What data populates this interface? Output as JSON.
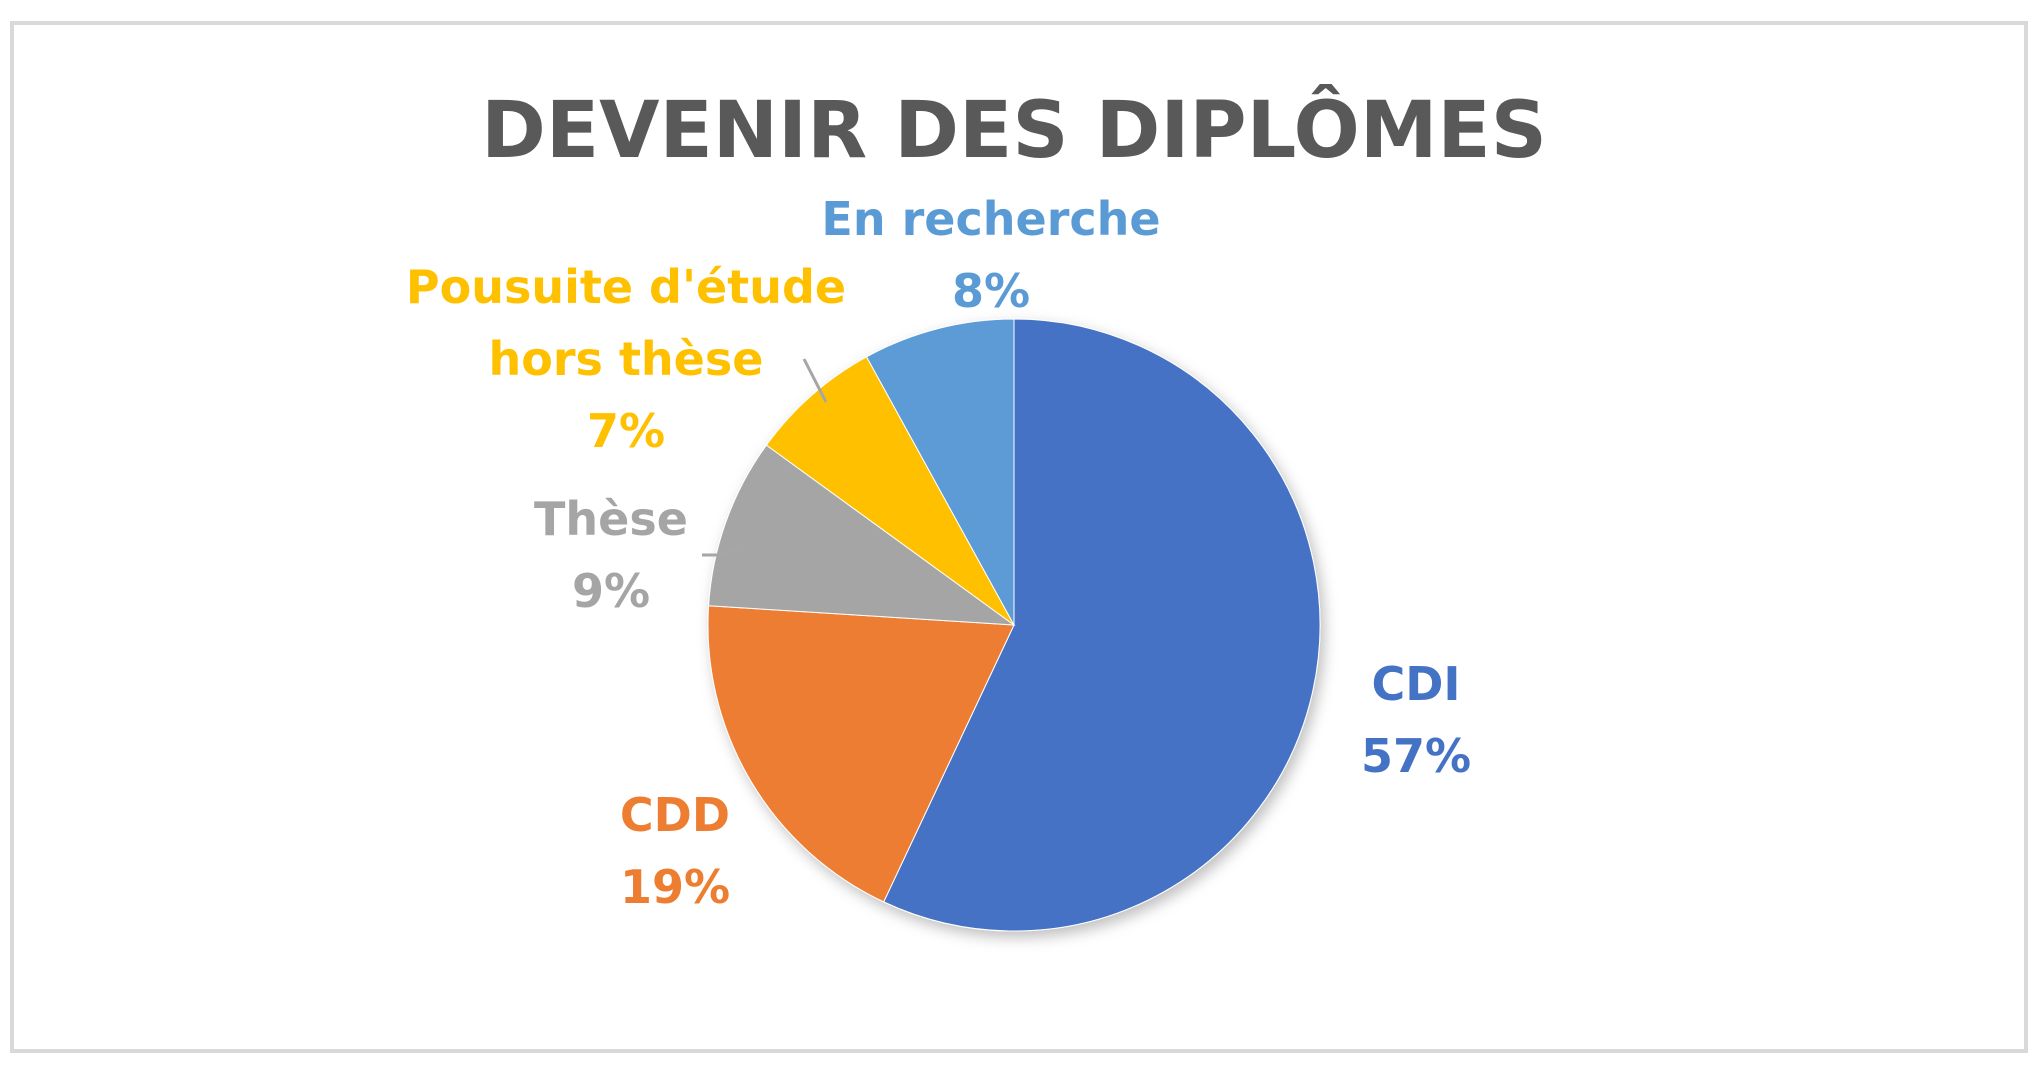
{
  "chart_data": {
    "type": "pie",
    "title": "DEVENIR DES DIPLÔMES",
    "slices": [
      {
        "label": "CDI",
        "value": 57,
        "percent_label": "57%",
        "color": "#4472c4"
      },
      {
        "label": "CDD",
        "value": 19,
        "percent_label": "19%",
        "color": "#ed7d31"
      },
      {
        "label": "Thèse",
        "value": 9,
        "percent_label": "9%",
        "color": "#a5a5a5"
      },
      {
        "label": "Pousuite d'étude hors thèse",
        "value": 7,
        "percent_label": "7%",
        "color": "#ffc000"
      },
      {
        "label": "En recherche",
        "value": 8,
        "percent_label": "8%",
        "color": "#5b9bd5"
      }
    ],
    "legend": "none",
    "start_angle": "12 o'clock",
    "direction": "clockwise"
  }
}
